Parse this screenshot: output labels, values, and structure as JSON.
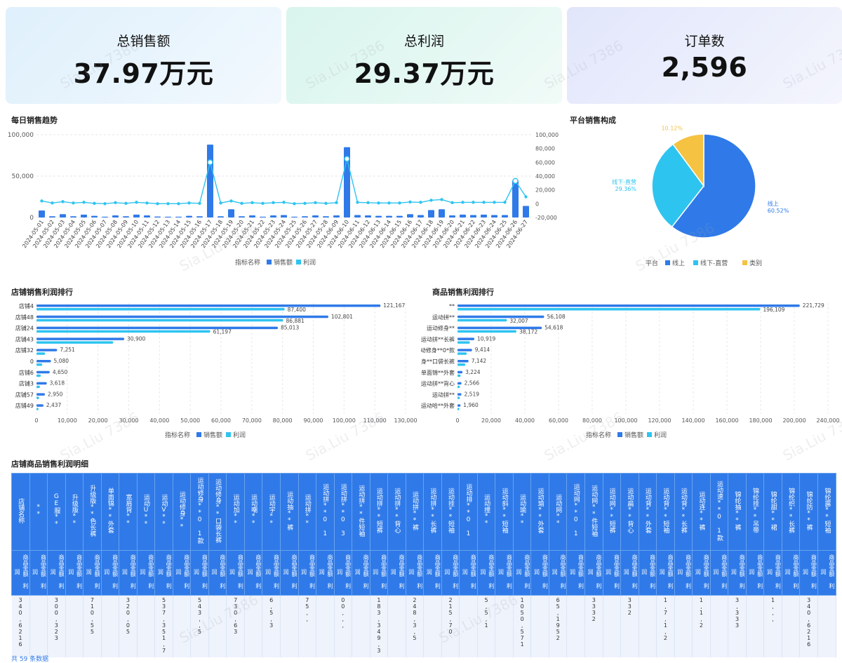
{
  "kpis": [
    {
      "label": "总销售额",
      "value": "37.97万元"
    },
    {
      "label": "总利润",
      "value": "29.37万元"
    },
    {
      "label": "订单数",
      "value": "2,596"
    }
  ],
  "watermark": "Sia.Liu 7386",
  "colors": {
    "sales": "#2f7ae8",
    "profit": "#2ec4f0",
    "retail": "#f5c242"
  },
  "daily_trend": {
    "title": "每日销售趋势",
    "legend_title": "指标名称",
    "chart_data": {
      "type": "bar+line",
      "categories": [
        "2024-05-01",
        "2024-05-02",
        "2024-05-03",
        "2024-05-04",
        "2024-05-05",
        "2024-05-06",
        "2024-05-07",
        "2024-05-08",
        "2024-05-09",
        "2024-05-10",
        "2024-05-11",
        "2024-05-12",
        "2024-05-13",
        "2024-05-14",
        "2024-05-15",
        "2024-05-16",
        "2024-05-17",
        "2024-05-18",
        "2024-05-19",
        "2024-05-20",
        "2024-05-21",
        "2024-05-22",
        "2024-05-23",
        "2024-05-24",
        "2024-05-25",
        "2024-05-26",
        "2024-05-27",
        "2024-05-28",
        "2024-06-09",
        "2024-06-10",
        "2024-06-11",
        "2024-06-12",
        "2024-06-13",
        "2024-06-14",
        "2024-06-15",
        "2024-06-16",
        "2024-06-17",
        "2024-06-18",
        "2024-06-19",
        "2024-06-20",
        "2024-06-21",
        "2024-06-22",
        "2024-06-23",
        "2024-06-24",
        "2024-06-25",
        "2024-06-26",
        "2024-06-27"
      ],
      "series": [
        {
          "name": "销售额",
          "axis": "left",
          "type": "bar",
          "values": [
            8500,
            1500,
            4000,
            1500,
            3500,
            2000,
            1000,
            2500,
            1500,
            3500,
            2500,
            1200,
            1000,
            1000,
            2000,
            1500,
            88000,
            1500,
            10000,
            1500,
            2500,
            1000,
            2500,
            3000,
            1000,
            1500,
            2500,
            1500,
            2500,
            85000,
            3000,
            2500,
            2000,
            2000,
            2000,
            4000,
            3000,
            9000,
            10000,
            2500,
            3500,
            3000,
            3500,
            3000,
            3000,
            45000,
            14000
          ]
        },
        {
          "name": "利润",
          "axis": "right",
          "type": "line",
          "values": [
            4000,
            1000,
            3000,
            1000,
            2000,
            500,
            0,
            1500,
            500,
            2000,
            1000,
            0,
            0,
            0,
            1000,
            500,
            60000,
            1000,
            4000,
            500,
            1500,
            500,
            1500,
            2000,
            0,
            500,
            1500,
            500,
            1500,
            65000,
            2000,
            1500,
            1000,
            1000,
            1000,
            2500,
            2000,
            5000,
            6000,
            1500,
            2000,
            2000,
            2000,
            2000,
            2000,
            33000,
            10000
          ]
        }
      ],
      "ylim_left": [
        0,
        100000
      ],
      "yticks_left": [
        "100,000",
        "50,000",
        "0"
      ],
      "ylim_right": [
        -20000,
        100000
      ],
      "yticks_right": [
        "100,000",
        "80,000",
        "60,000",
        "40,000",
        "20,000",
        "0",
        "-20,000"
      ],
      "grid": true,
      "legend": "bottom-center"
    }
  },
  "platform": {
    "title": "平台销售构成",
    "legend_title": "平台",
    "chart_data": {
      "type": "pie",
      "slices": [
        {
          "name": "线上",
          "value": 60.52,
          "label": "60.52%"
        },
        {
          "name": "线下-直营",
          "value": 29.36,
          "label": "29.36%"
        },
        {
          "name": "类别",
          "value": 10.12,
          "label": "10.12%"
        }
      ],
      "legend": "bottom-center"
    }
  },
  "store_rank": {
    "title": "店铺销售利润排行",
    "legend_title": "指标名称",
    "chart_data": {
      "type": "bar",
      "orientation": "horizontal",
      "categories": [
        "店铺4",
        "店铺48",
        "店铺24",
        "店铺43",
        "店铺32",
        "0",
        "店铺6",
        "店铺3",
        "店铺57",
        "店铺49"
      ],
      "series": [
        {
          "name": "销售额",
          "values": [
            121167,
            102801,
            85013,
            30900,
            7251,
            5080,
            4650,
            3618,
            2950,
            2437
          ],
          "labels": [
            "121,167",
            "102,801",
            "85,013",
            "30,900",
            "7,251",
            "5,080",
            "4,650",
            "3,618",
            "2,950",
            "2,437"
          ]
        },
        {
          "name": "利润",
          "values": [
            87400,
            86881,
            61197,
            27000,
            3000,
            2000,
            1500,
            1200,
            900,
            700
          ],
          "labels": [
            "87,400",
            "86,881",
            "61,197",
            "",
            "",
            "",
            "",
            "",
            "",
            ""
          ]
        }
      ],
      "xlim": [
        0,
        130000
      ],
      "xticks": [
        "0",
        "10,000",
        "20,000",
        "30,000",
        "40,000",
        "50,000",
        "60,000",
        "70,000",
        "80,000",
        "90,000",
        "100,000",
        "110,000",
        "130,000"
      ],
      "legend": "bottom-center"
    }
  },
  "product_rank": {
    "title": "商品销售利润排行",
    "legend_title": "指标名称",
    "chart_data": {
      "type": "bar",
      "orientation": "horizontal",
      "categories": [
        "**",
        "运动拼**",
        "运动修身**",
        "运动拼**长裤",
        "运动修身**0*款",
        "运动修身**口袋长裤",
        "单面锦**外套",
        "运动拼**背心",
        "运动拼**",
        "运动哈**外套"
      ],
      "series": [
        {
          "name": "销售额",
          "values": [
            221729,
            56108,
            54618,
            10919,
            9414,
            7142,
            3224,
            2566,
            2519,
            1960
          ],
          "labels": [
            "221,729",
            "56,108",
            "54,618",
            "10,919",
            "9,414",
            "7,142",
            "3,224",
            "2,566",
            "2,519",
            "1,960"
          ]
        },
        {
          "name": "利润",
          "values": [
            196109,
            32007,
            38172,
            8000,
            6000,
            5000,
            2000,
            1500,
            1500,
            1200
          ],
          "labels": [
            "196,109",
            "32,007",
            "38,172",
            "",
            "",
            "",
            "",
            "",
            "",
            ""
          ]
        }
      ],
      "xlim": [
        0,
        240000
      ],
      "xticks": [
        "0",
        "20,000",
        "40,000",
        "60,000",
        "80,000",
        "100,000",
        "120,000",
        "140,000",
        "160,000",
        "180,000",
        "200,000",
        "240,000"
      ],
      "legend": "bottom-center"
    }
  },
  "detail": {
    "title": "店铺商品销售利润明细",
    "columns": [
      "店铺名称",
      "**",
      "GE服**",
      "升级版**",
      "升级版**色长裤",
      "单面锦**外套",
      "宽肩背**",
      "运动U**",
      "运动V**",
      "运动修身**",
      "运动修身**0 1款",
      "运动修身**口袋长裤",
      "运动加**",
      "运动嘲**",
      "运动宇**",
      "运动抽**裤",
      "运动拼**",
      "运动拼**0 1",
      "运动拼**0 3",
      "运动拼**件短袖",
      "运动拼**短裤",
      "运动拼**背心",
      "运动拼**裤",
      "运动拼**长裤",
      "运动挂**短袖",
      "运动排**0 1",
      "运动撞**",
      "运动斜**短袖",
      "运动瑜**",
      "运动瑜**外套",
      "运动网**",
      "运动网**0 1",
      "运动网**件短袖",
      "运动网**短裤",
      "运动扁**背心",
      "运动背**外套",
      "运动背**短袖",
      "运动背**长裤",
      "运动连**裤",
      "运动速**0 1款",
      "锦纶抽**裤",
      "锦纶挂**吊带",
      "锦纶甜**裙",
      "锦纶织**长裤",
      "锦纶防**裤",
      "锦纶露**短袖"
    ],
    "subheader": [
      "商品金额",
      "利润"
    ],
    "sample_values": [
      "340,6216",
      "300,323",
      "710,55",
      "320,05",
      "537,351,7",
      "543,,5",
      "730,63",
      "6,5,3",
      "75,,",
      "00,,,",
      "183,349,3",
      "248,3,5",
      "215,70",
      "5,5,1",
      "1050,571",
      "65,1952",
      "3332",
      "332",
      "1,7,1,2",
      "1,1,2",
      "3,333",
      "1,,,"
    ],
    "pager": "共 59 条数据"
  }
}
